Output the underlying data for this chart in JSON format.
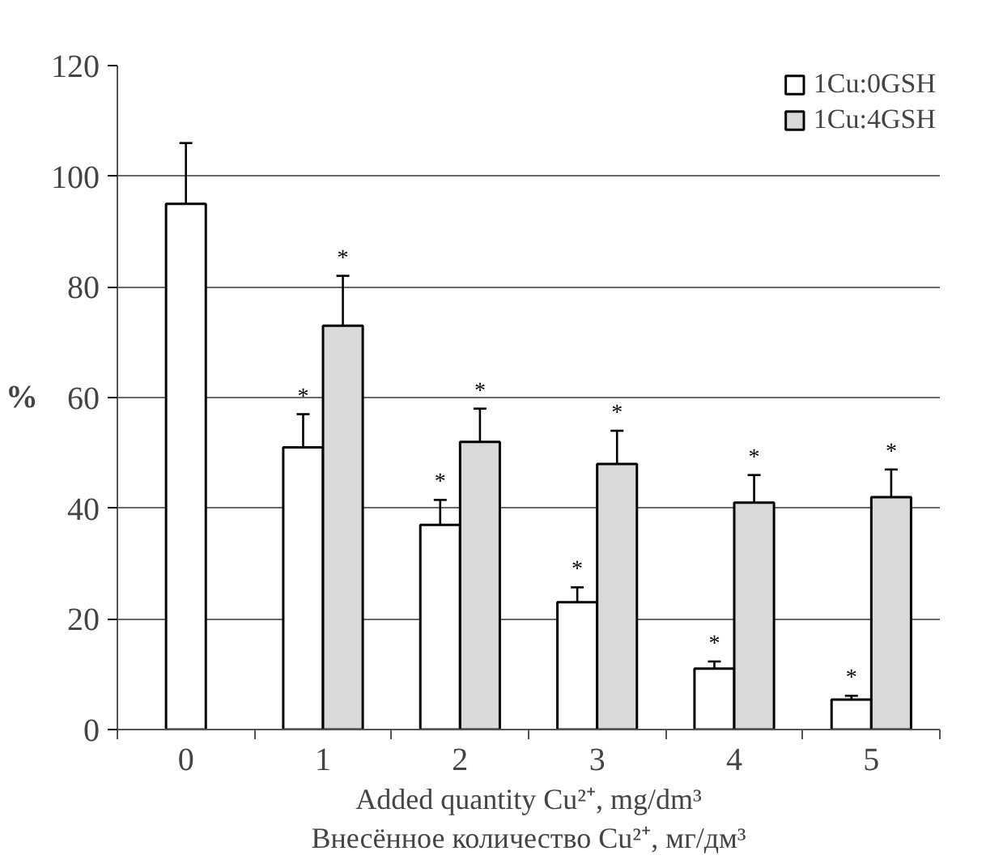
{
  "chart_data": {
    "type": "bar",
    "categories": [
      "0",
      "1",
      "2",
      "3",
      "4",
      "5"
    ],
    "xlabel": "Added quantity Cu²⁺, mg/dm³\nВнесённое количество Cu²⁺, мг/дм³",
    "ylabel": "%",
    "series": [
      {
        "name": "1Cu:0GSH",
        "color": "#ffffff",
        "values": [
          95,
          51,
          37,
          23,
          11,
          5.4
        ],
        "errors": [
          11,
          6,
          4.5,
          2.7,
          1.3,
          0.7
        ]
      },
      {
        "name": "1Cu:4GSH",
        "color": "#d9d9d9",
        "values": [
          null,
          73,
          52,
          48,
          41,
          42
        ],
        "errors": [
          null,
          9,
          6,
          6,
          5,
          5
        ]
      }
    ],
    "annotations": [
      {
        "text": "*",
        "x": "1",
        "y": 51
      },
      {
        "text": "*",
        "x": "1",
        "y": 73
      },
      {
        "text": "*",
        "x": "2",
        "y": 37
      },
      {
        "text": "*",
        "x": "2",
        "y": 52
      },
      {
        "text": "*",
        "x": "3",
        "y": 23
      },
      {
        "text": "*",
        "x": "3",
        "y": 48
      },
      {
        "text": "*",
        "x": "4",
        "y": 11
      },
      {
        "text": "*",
        "x": "4",
        "y": 41
      },
      {
        "text": "*",
        "x": "5",
        "y": 5.4
      },
      {
        "text": "*",
        "x": "5",
        "y": 42
      }
    ],
    "ylim": [
      0,
      120
    ],
    "yticks": [
      0,
      20,
      40,
      60,
      80,
      100,
      120
    ],
    "grid": "y",
    "legend": "top right"
  }
}
